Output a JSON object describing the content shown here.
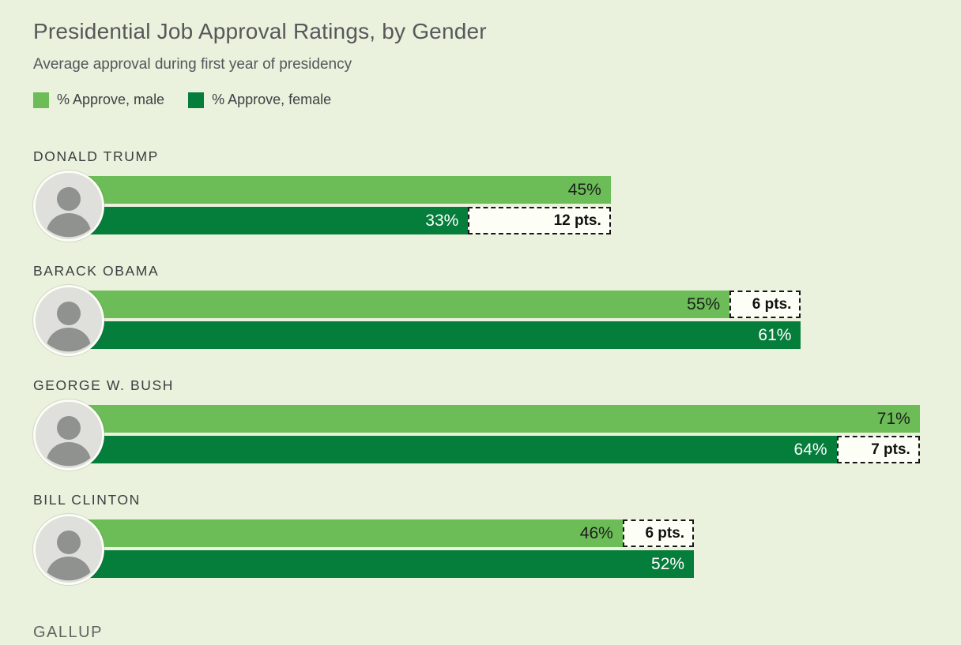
{
  "colors": {
    "background": "#eaf1dc",
    "male": "#6cbc57",
    "female": "#057d3b",
    "gap_box_bg": "#fdfef6",
    "gap_box_border": "#161616"
  },
  "header": {
    "title": "Presidential Job Approval Ratings, by Gender",
    "subtitle": "Average approval during first year of presidency"
  },
  "legend": [
    {
      "label": "% Approve, male",
      "color": "#6cbc57"
    },
    {
      "label": "% Approve, female",
      "color": "#057d3b"
    }
  ],
  "presidents": [
    {
      "name": "DONALD TRUMP",
      "male": 45,
      "male_label": "45%",
      "female": 33,
      "female_label": "33%",
      "gap": 12,
      "gap_label": "12 pts.",
      "gap_row": "female"
    },
    {
      "name": "BARACK OBAMA",
      "male": 55,
      "male_label": "55%",
      "female": 61,
      "female_label": "61%",
      "gap": 6,
      "gap_label": "6 pts.",
      "gap_row": "male"
    },
    {
      "name": "GEORGE W. BUSH",
      "male": 71,
      "male_label": "71%",
      "female": 64,
      "female_label": "64%",
      "gap": 7,
      "gap_label": "7 pts.",
      "gap_row": "female"
    },
    {
      "name": "BILL CLINTON",
      "male": 46,
      "male_label": "46%",
      "female": 52,
      "female_label": "52%",
      "gap": 6,
      "gap_label": "6 pts.",
      "gap_row": "male"
    }
  ],
  "footer": {
    "source": "GALLUP"
  },
  "chart_data": {
    "type": "bar",
    "orientation": "horizontal",
    "title": "Presidential Job Approval Ratings, by Gender",
    "subtitle": "Average approval during first year of presidency",
    "categories": [
      "DONALD TRUMP",
      "BARACK OBAMA",
      "GEORGE W. BUSH",
      "BILL CLINTON"
    ],
    "series": [
      {
        "name": "% Approve, male",
        "color": "#6cbc57",
        "values": [
          45,
          55,
          71,
          46
        ]
      },
      {
        "name": "% Approve, female",
        "color": "#057d3b",
        "values": [
          33,
          61,
          64,
          52
        ]
      }
    ],
    "gap_annotations": [
      {
        "category": "DONALD TRUMP",
        "points": 12,
        "label": "12 pts.",
        "on_series": "% Approve, female"
      },
      {
        "category": "BARACK OBAMA",
        "points": 6,
        "label": "6 pts.",
        "on_series": "% Approve, male"
      },
      {
        "category": "GEORGE W. BUSH",
        "points": 7,
        "label": "7 pts.",
        "on_series": "% Approve, female"
      },
      {
        "category": "BILL CLINTON",
        "points": 6,
        "label": "6 pts.",
        "on_series": "% Approve, male"
      }
    ],
    "value_suffix": "%",
    "xlim": [
      0,
      71
    ],
    "grid": false,
    "legend_position": "top",
    "source": "GALLUP"
  }
}
